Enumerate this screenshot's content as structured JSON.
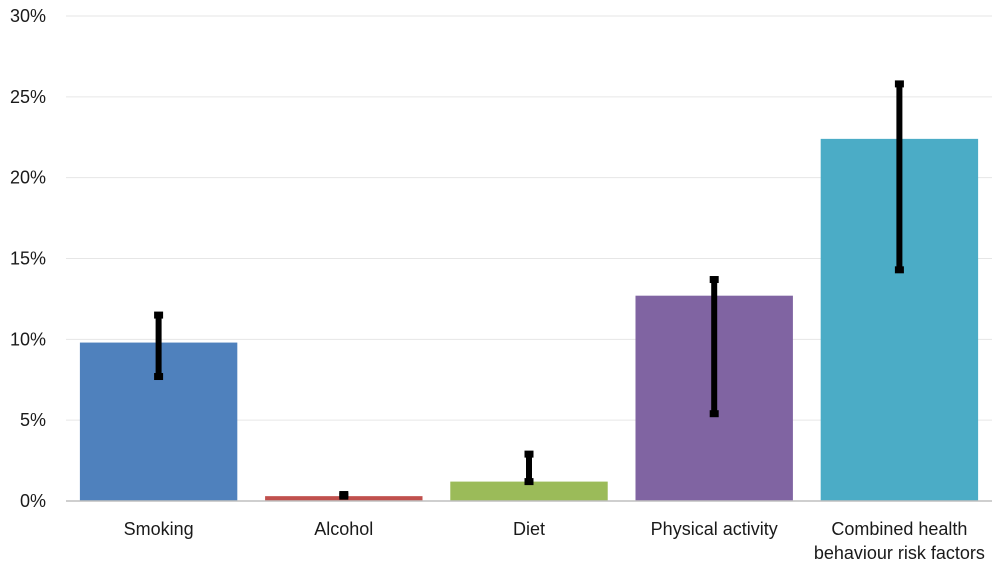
{
  "chart_data": {
    "type": "bar",
    "title": "",
    "xlabel": "",
    "ylabel": "",
    "ylim": [
      0,
      30
    ],
    "ytick_values": [
      0,
      5,
      10,
      15,
      20,
      25,
      30
    ],
    "ytick_labels": [
      "0%",
      "5%",
      "10%",
      "15%",
      "20%",
      "25%",
      "30%"
    ],
    "categories": [
      [
        "Smoking"
      ],
      [
        "Alcohol"
      ],
      [
        "Diet"
      ],
      [
        "Physical activity"
      ],
      [
        "Combined health",
        "behaviour risk factors"
      ]
    ],
    "values": [
      9.8,
      0.3,
      1.2,
      12.7,
      22.4
    ],
    "error_low": [
      7.7,
      0.3,
      1.2,
      5.4,
      14.3
    ],
    "error_high": [
      11.5,
      0.4,
      2.9,
      13.7,
      25.8
    ],
    "colors": [
      "#4f81bd",
      "#c0504d",
      "#9bbb59",
      "#8064a2",
      "#4bacc6"
    ],
    "gridlines": true,
    "legend": "none"
  }
}
